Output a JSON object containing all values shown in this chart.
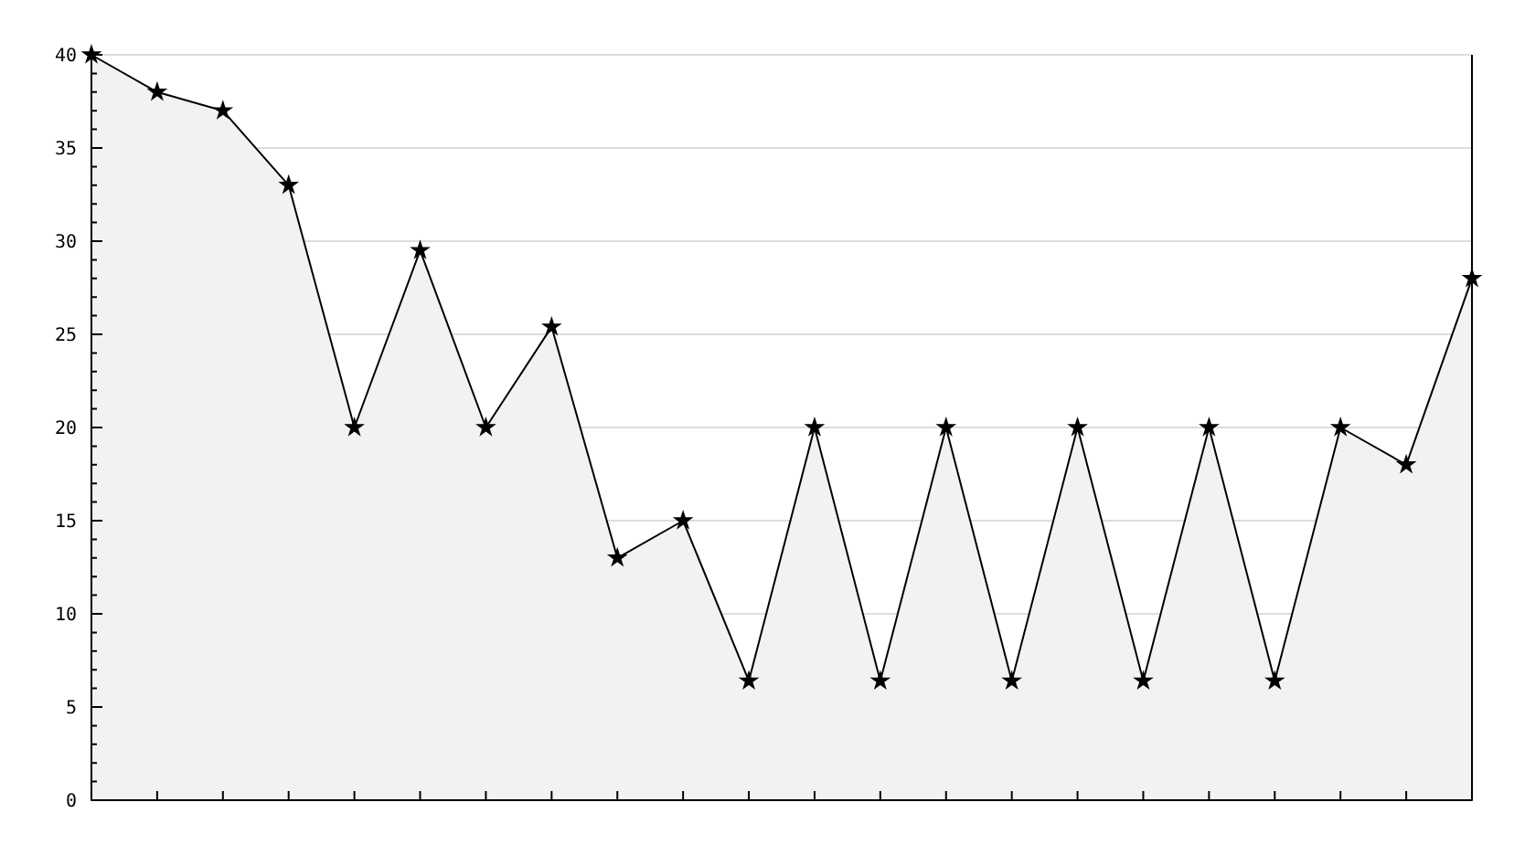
{
  "chart_data": {
    "type": "area",
    "categories": [
      null,
      null,
      null,
      null,
      null,
      null,
      null,
      null,
      null,
      null,
      null,
      null,
      null,
      null,
      null,
      null,
      null,
      null,
      null,
      null,
      null,
      null
    ],
    "series": [
      {
        "color": "#000000",
        "values": [
          40,
          38,
          37,
          33,
          20,
          29.5,
          20,
          25.4,
          13,
          15,
          6.4,
          20,
          6.4,
          20,
          6.4,
          20,
          6.4,
          20,
          6.4,
          20,
          18,
          28
        ]
      }
    ],
    "ylim": [
      0,
      40
    ],
    "yticks": [
      0,
      5,
      10,
      15,
      20,
      25,
      30,
      35,
      40
    ],
    "grid": "y",
    "marker": "star",
    "line_style": "solid"
  }
}
